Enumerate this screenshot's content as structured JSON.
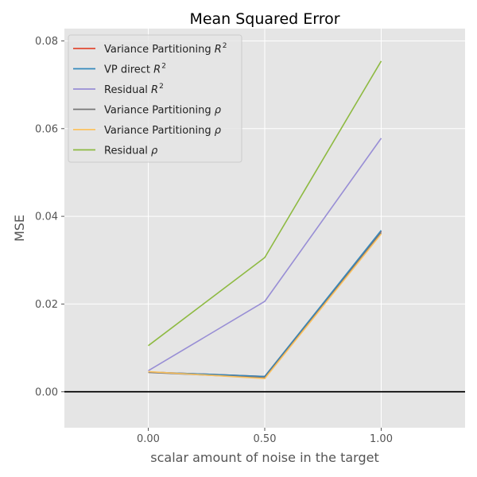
{
  "chart_data": {
    "type": "line",
    "title": "Mean Squared Error",
    "xlabel": "scalar amount of noise in the target",
    "ylabel": "MSE",
    "x": [
      0.0,
      0.5,
      1.0
    ],
    "x_ticks": [
      0.0,
      0.5,
      1.0
    ],
    "x_tick_labels": [
      "0.00",
      "0.50",
      "1.00"
    ],
    "xlim": [
      -0.36,
      1.36
    ],
    "y_ticks": [
      0.0,
      0.02,
      0.04,
      0.06,
      0.08
    ],
    "y_tick_labels": [
      "0.00",
      "0.02",
      "0.04",
      "0.06",
      "0.08"
    ],
    "ylim": [
      -0.0082,
      0.0828
    ],
    "grid": true,
    "legend_position": "top-left",
    "reference_line_y": 0.0,
    "series": [
      {
        "name_prefix": "Variance Partitioning ",
        "name_symbol": "R",
        "name_superscript": "2",
        "color": "#E24A33",
        "values": [
          0.0045,
          0.0035,
          0.0366
        ]
      },
      {
        "name_prefix": "VP direct ",
        "name_symbol": "R",
        "name_superscript": "2",
        "color": "#348ABD",
        "values": [
          0.0045,
          0.0035,
          0.0368
        ]
      },
      {
        "name_prefix": "Residual ",
        "name_symbol": "R",
        "name_superscript": "2",
        "color": "#988ED5",
        "values": [
          0.0048,
          0.0206,
          0.0578
        ]
      },
      {
        "name_prefix": "Variance Partitioning ",
        "name_symbol": "ρ",
        "name_superscript": "",
        "color": "#777777",
        "values": [
          0.0044,
          0.0032,
          0.0363
        ]
      },
      {
        "name_prefix": "Variance Partitioning ",
        "name_symbol": "ρ",
        "name_superscript": "",
        "color": "#FBC15E",
        "values": [
          0.0046,
          0.003,
          0.036
        ]
      },
      {
        "name_prefix": "Residual ",
        "name_symbol": "ρ",
        "name_superscript": "",
        "color": "#8EBA42",
        "values": [
          0.0105,
          0.0306,
          0.0754
        ]
      }
    ]
  }
}
